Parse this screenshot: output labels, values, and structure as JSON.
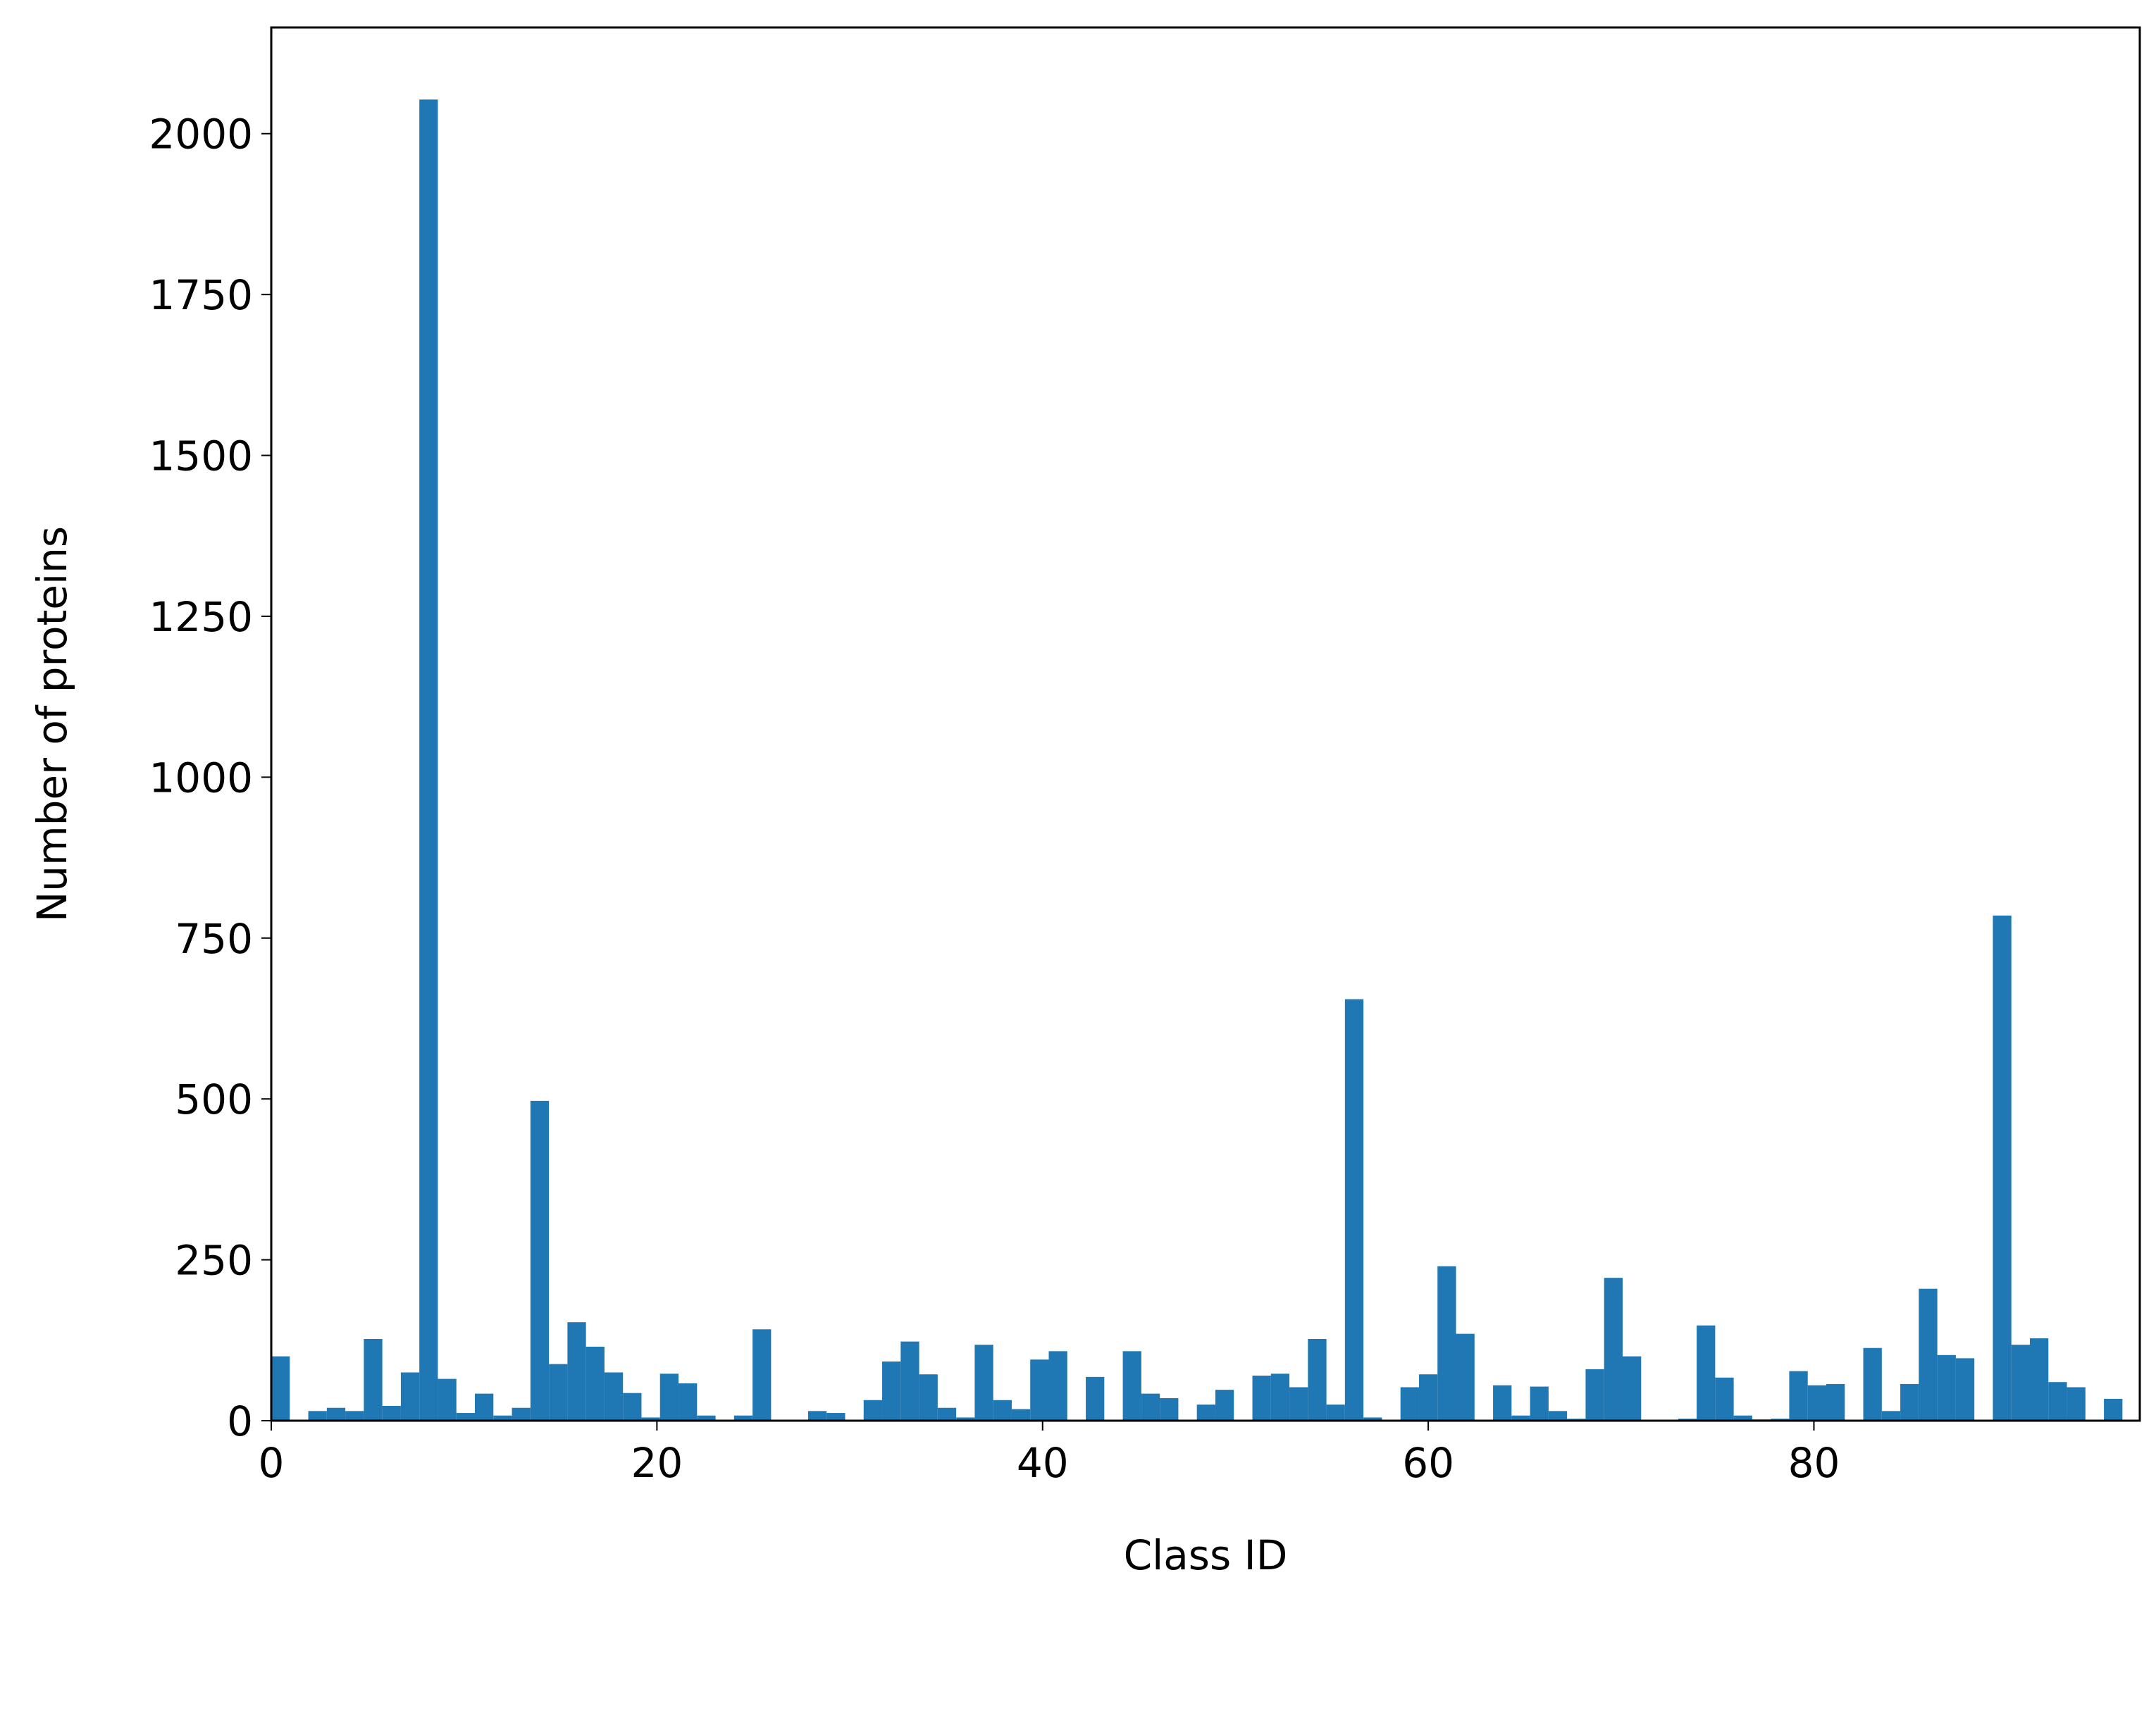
{
  "chart_data": {
    "type": "histogram",
    "xlabel": "Class ID",
    "ylabel": "Number of proteins",
    "color": "#1f77b4",
    "bins": [
      0,
      0.96,
      1.92,
      2.88,
      3.84,
      4.8,
      5.76,
      6.72,
      7.68,
      8.64,
      9.6,
      10.56,
      11.52,
      12.48,
      13.44,
      14.4,
      15.36,
      16.32,
      17.28,
      18.24,
      19.2,
      20.16,
      21.12,
      22.08,
      23.04,
      24,
      24.96,
      25.92,
      26.88,
      27.84,
      28.8,
      29.76,
      30.72,
      31.68,
      32.64,
      33.6,
      34.56,
      35.52,
      36.48,
      37.44,
      38.4,
      39.36,
      40.32,
      41.28,
      42.24,
      43.2,
      44.16,
      45.12,
      46.08,
      47.04,
      48,
      48.96,
      49.92,
      50.88,
      51.84,
      52.8,
      53.76,
      54.72,
      55.68,
      56.64,
      57.6,
      58.56,
      59.52,
      60.48,
      61.44,
      62.4,
      63.36,
      64.32,
      65.28,
      66.24,
      67.2,
      68.16,
      69.12,
      70.08,
      71.04,
      72,
      72.96,
      73.92,
      74.88,
      75.84,
      76.8,
      77.76,
      78.72,
      79.68,
      80.64,
      81.6,
      82.56,
      83.52,
      84.48,
      85.44,
      86.4,
      87.36,
      88.32,
      89.28,
      90.24,
      91.2,
      92.16,
      93.12,
      94.08,
      95.04,
      96
    ],
    "values": [
      100,
      0,
      15,
      20,
      15,
      127,
      23,
      75,
      2053,
      65,
      12,
      42,
      8,
      20,
      497,
      88,
      153,
      115,
      75,
      43,
      5,
      73,
      58,
      8,
      0,
      8,
      142,
      0,
      0,
      15,
      12,
      0,
      32,
      92,
      123,
      72,
      20,
      5,
      118,
      32,
      18,
      95,
      108,
      0,
      68,
      0,
      108,
      42,
      35,
      0,
      25,
      48,
      0,
      70,
      73,
      52,
      127,
      25,
      655,
      5,
      0,
      52,
      72,
      240,
      135,
      0,
      55,
      8,
      53,
      15,
      3,
      80,
      222,
      100,
      0,
      0,
      3,
      148,
      67,
      8,
      2,
      3,
      77,
      55,
      57,
      0,
      113,
      15,
      57,
      205,
      102,
      97,
      0,
      785,
      118,
      128,
      60,
      52,
      0,
      34
    ],
    "xlim": [
      0,
      96.9
    ],
    "ylim": [
      0,
      2165
    ],
    "xticks": [
      0,
      20,
      40,
      60,
      80
    ],
    "yticks": [
      0,
      250,
      500,
      750,
      1000,
      1250,
      1500,
      1750,
      2000
    ]
  }
}
